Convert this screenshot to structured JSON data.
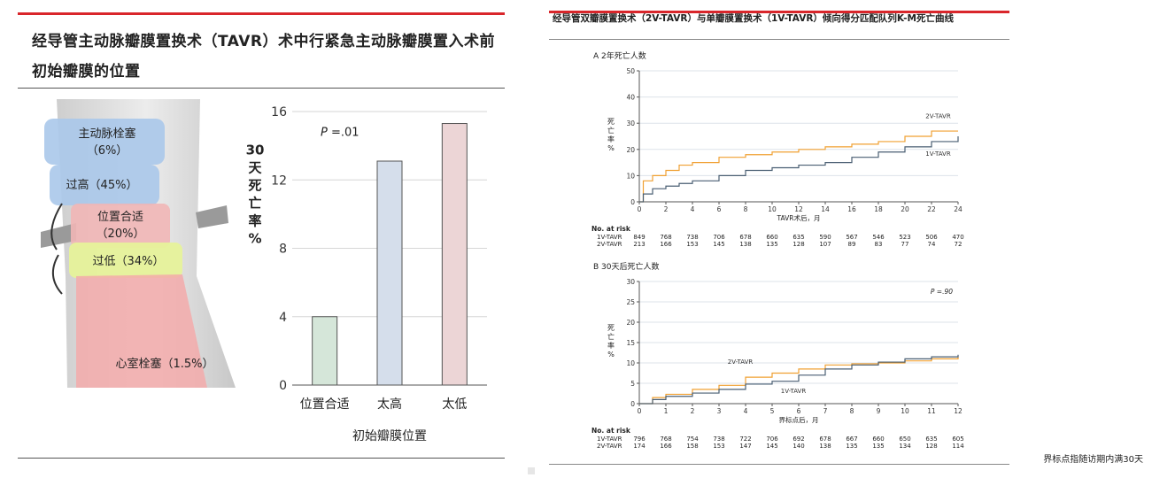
{
  "left": {
    "title": "经导管主动脉瓣膜置换术（TAVR）术中行紧急主动脉瓣膜置入术前初始瓣膜的位置",
    "diagram_labels": {
      "embolism": "主动脉栓塞",
      "embolism_pct": "（6%）",
      "high": "过高（45%）",
      "proper": "位置合适",
      "proper_pct": "（20%）",
      "low": "过低（34%）",
      "ventricle": "心室栓塞（1.5%）"
    },
    "colors": {
      "proper": "#d5e6d9",
      "high": "#d5deeb",
      "low": "#ecd5d6",
      "accent": "#d9262b"
    }
  },
  "right": {
    "title": "经导管双瓣膜置换术（2V-TAVR）与单瓣膜置换术（1V-TAVR）倾向得分匹配队列K-M死亡曲线",
    "note": "界标点指随访期内满30天",
    "colors": {
      "v2": "#f0a032",
      "v1": "#4a5f73"
    }
  },
  "chart_data": [
    {
      "type": "bar",
      "categories": [
        "位置合适",
        "太高",
        "太低"
      ],
      "values": [
        4,
        13.1,
        15.3
      ],
      "ylabel": "30天死亡率%",
      "xlabel": "初始瓣膜位置",
      "annotation": "P =.01",
      "ylim": [
        0,
        16
      ],
      "yticks": [
        0,
        4,
        8,
        12,
        16
      ],
      "grid": true
    },
    {
      "type": "line",
      "title": "A 2年死亡人数",
      "xlabel": "TAVR术后，月",
      "ylabel": "死亡率%",
      "xlim": [
        0,
        24
      ],
      "ylim": [
        0,
        50
      ],
      "xticks": [
        0,
        2,
        4,
        6,
        8,
        10,
        12,
        14,
        16,
        18,
        20,
        22,
        24
      ],
      "yticks": [
        0,
        10,
        20,
        30,
        40,
        50
      ],
      "series": [
        {
          "name": "2V-TAVR",
          "x": [
            0,
            0.3,
            1,
            2,
            3,
            4,
            6,
            8,
            10,
            12,
            14,
            16,
            18,
            20,
            22,
            24
          ],
          "y": [
            0,
            8,
            10,
            12,
            14,
            15,
            17,
            18,
            19,
            20,
            21,
            22,
            23,
            25,
            27,
            27
          ]
        },
        {
          "name": "1V-TAVR",
          "x": [
            0,
            0.3,
            1,
            2,
            3,
            4,
            6,
            8,
            10,
            12,
            14,
            16,
            18,
            20,
            22,
            24
          ],
          "y": [
            0,
            3,
            5,
            6,
            7,
            8,
            10,
            12,
            13,
            14,
            15,
            17,
            19,
            21,
            23,
            25
          ]
        }
      ],
      "risk_header": "No. at risk",
      "risk_rows": [
        {
          "label": "1V-TAVR",
          "values": [
            "849",
            "768",
            "738",
            "706",
            "678",
            "660",
            "635",
            "590",
            "567",
            "546",
            "523",
            "506",
            "470"
          ]
        },
        {
          "label": "2V-TAVR",
          "values": [
            "213",
            "166",
            "153",
            "145",
            "138",
            "135",
            "128",
            "107",
            "89",
            "83",
            "77",
            "74",
            "72"
          ]
        }
      ]
    },
    {
      "type": "line",
      "title": "B 30天后死亡人数",
      "xlabel": "界标点后，月",
      "ylabel": "死亡率%",
      "annotation": "P =.90",
      "xlim": [
        0,
        12
      ],
      "ylim": [
        0,
        30
      ],
      "xticks": [
        0,
        1,
        2,
        3,
        4,
        5,
        6,
        7,
        8,
        9,
        10,
        11,
        12
      ],
      "yticks": [
        0,
        5,
        10,
        15,
        20,
        25,
        30
      ],
      "series": [
        {
          "name": "2V-TAVR",
          "x": [
            0,
            0.5,
            1,
            2,
            3,
            4,
            5,
            6,
            7,
            8,
            9,
            10,
            11,
            12
          ],
          "y": [
            0,
            1.5,
            2.3,
            3.5,
            4.5,
            6.5,
            7.5,
            8.5,
            9.5,
            9.8,
            10,
            10.5,
            11,
            11.5
          ]
        },
        {
          "name": "1V-TAVR",
          "x": [
            0,
            0.5,
            1,
            2,
            3,
            4,
            5,
            6,
            7,
            8,
            9,
            10,
            11,
            12
          ],
          "y": [
            0,
            1,
            1.8,
            2.6,
            3.5,
            4.8,
            5.5,
            7,
            8.5,
            9.5,
            10.2,
            11,
            11.5,
            12
          ]
        }
      ],
      "risk_header": "No. at risk",
      "risk_rows": [
        {
          "label": "1V-TAVR",
          "values": [
            "796",
            "768",
            "754",
            "738",
            "722",
            "706",
            "692",
            "678",
            "667",
            "660",
            "650",
            "635",
            "605"
          ]
        },
        {
          "label": "2V-TAVR",
          "values": [
            "174",
            "166",
            "158",
            "153",
            "147",
            "145",
            "140",
            "138",
            "135",
            "135",
            "134",
            "128",
            "114"
          ]
        }
      ]
    }
  ]
}
